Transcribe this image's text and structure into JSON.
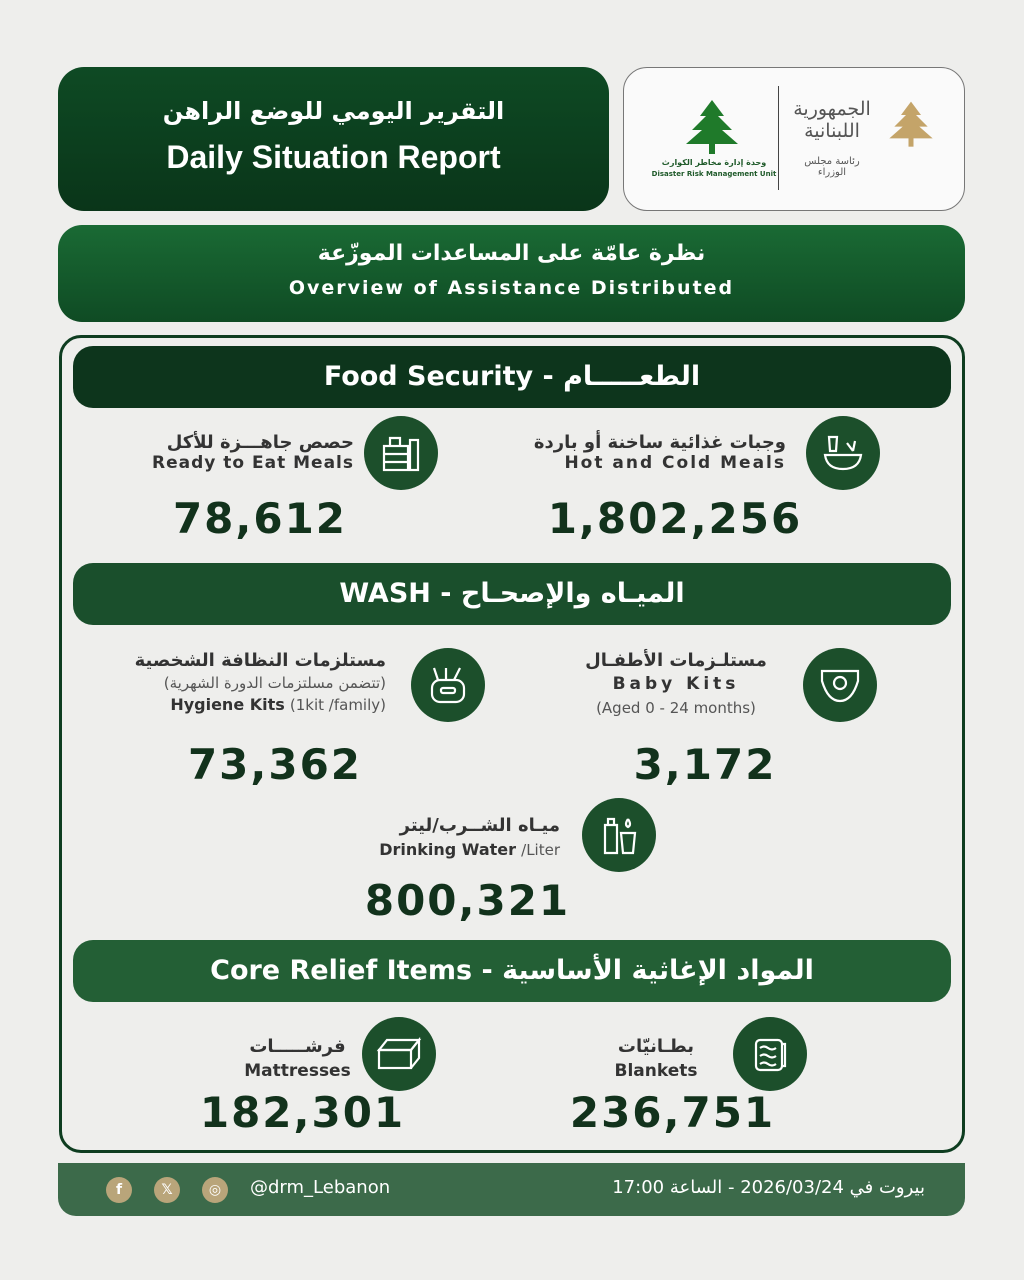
{
  "header": {
    "title_ar": "التقرير اليومي للوضع الراهن",
    "title_en": "Daily Situation Report"
  },
  "logos": {
    "drm_ar": "وحدة إدارة مخاطر الكوارث",
    "drm_en": "Disaster Risk Management Unit",
    "republic_ar": "الجمهورية اللبنانية",
    "pcm_ar": "رئاسة مجلس الوزراء"
  },
  "overview": {
    "title_ar": "نظرة عامّة على المساعدات الموزّعة",
    "title_en": "Overview of Assistance Distributed"
  },
  "sections": {
    "food": {
      "title": "Food Security - الطعـــــام",
      "items": [
        {
          "ar": "وجبات غذائية ساخنة أو باردة",
          "en": "Hot and Cold Meals",
          "value": "1,802,256",
          "icon": "hot-meal-icon"
        },
        {
          "ar": "حصص جاهـــزة للأكل",
          "en": "Ready to Eat Meals",
          "value": "78,612",
          "icon": "ready-meal-icon"
        }
      ]
    },
    "wash": {
      "title": "WASH - الميـاه والإصحـاح",
      "items": [
        {
          "ar": "مستلـزمات الأطفـال",
          "en": "Baby Kits",
          "note": "(Aged 0 - 24 months)",
          "value": "3,172",
          "icon": "diaper-icon"
        },
        {
          "ar": "مستلزمات النظافة الشخصية",
          "note_ar": "(تتضمن مسلتزمات الدورة الشهرية)",
          "en": "Hygiene Kits",
          "note": "(1kit /family)",
          "value": "73,362",
          "icon": "hygiene-kit-icon"
        },
        {
          "ar": "ميـاه الشــرب/ليتر",
          "en": "Drinking Water",
          "note": "/Liter",
          "value": "800,321",
          "icon": "water-bottle-icon"
        }
      ]
    },
    "cri": {
      "title": "Core Relief Items - المواد الإغاثية الأساسية",
      "items": [
        {
          "ar": "بطـانيّات",
          "en": "Blankets",
          "value": "236,751",
          "icon": "blanket-icon"
        },
        {
          "ar": "فرشـــــات",
          "en": "Mattresses",
          "value": "182,301",
          "icon": "mattress-icon"
        }
      ]
    }
  },
  "footer": {
    "handle": "@drm_Lebanon",
    "date_text": "بيروت في 2026/03/24 - الساعة 17:00",
    "social": [
      "facebook-icon",
      "x-icon",
      "instagram-icon"
    ]
  },
  "colors": {
    "dark_green": "#0e4a24",
    "footer_green": "#3c6a4a",
    "gold": "#b9a57a"
  }
}
